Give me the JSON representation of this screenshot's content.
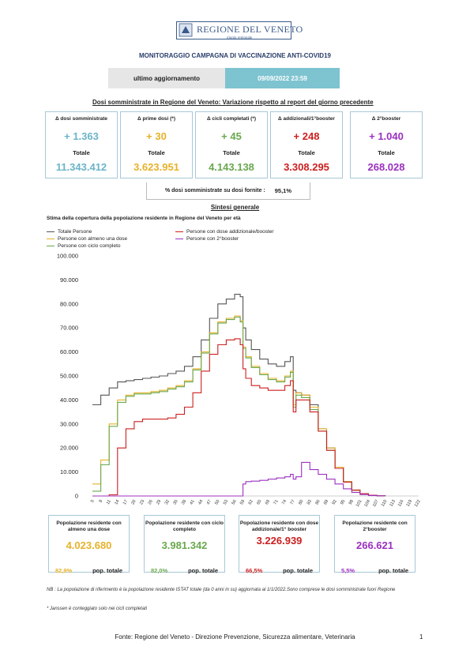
{
  "header": {
    "logo_text": "REGIONE DEL VENETO",
    "logo_subtext": "giunta regionale",
    "title": "MONITORAGGIO CAMPAGNA DI VACCINAZIONE ANTI-COVID19",
    "update_label": "ultimo aggiornamento",
    "update_date": "09/09/2022 23:59"
  },
  "section_title": "Dosi somministrate in Regione del Veneto: Variazione rispetto al report del giorno precedente",
  "cards": [
    {
      "header": "Δ dosi somministrate",
      "delta": "+ 1.363",
      "total_label": "Totale",
      "total": "11.343.412",
      "color": "#6cb4c8"
    },
    {
      "header": "Δ prime dosi (*)",
      "delta": "+ 30",
      "total_label": "Totale",
      "total": "3.623.951",
      "color": "#e6b22a"
    },
    {
      "header": "Δ cicli completati (*)",
      "delta": "+ 45",
      "total_label": "Totale",
      "total": "4.143.138",
      "color": "#6aa84f"
    },
    {
      "header": "Δ addizionali/1°booster",
      "delta": "+ 248",
      "total_label": "Totale",
      "total": "3.308.295",
      "color": "#cc1f1f"
    },
    {
      "header": "Δ 2°booster",
      "delta": "+ 1.040",
      "total_label": "Totale",
      "total": "268.028",
      "color": "#9b30c0"
    }
  ],
  "pct_label": "% dosi somministrate su dosi fornite :",
  "pct_value": "95,1%",
  "sintesi_title": "Sintesi generale",
  "chart_title": "Stima della copertura della popolazione residente in Regione del Veneto per età",
  "bottom_cards": [
    {
      "header": "Popolazione residente con almeno una dose",
      "value": "4.023.680",
      "pct": "82,9%",
      "pop_label": "pop. totale",
      "color": "#e6b22a"
    },
    {
      "header": "Popolazione residente con ciclo completo",
      "value": "3.981.342",
      "pct": "82,0%",
      "pop_label": "pop. totale",
      "color": "#6aa84f"
    },
    {
      "header": "Popolazione residente con dose addizionale/1° booster",
      "value": "3.226.939",
      "pct": "66,5%",
      "pop_label": "pop. totale",
      "color": "#cc1f1f"
    },
    {
      "header": "Popolazione residente con 2°booster",
      "value": "266.621",
      "pct": "5,5%",
      "pop_label": "pop. totale",
      "color": "#9b30c0"
    }
  ],
  "notes": {
    "nb": "NB : La popolazione di riferimento è la popolazione residente ISTAT totale (da 0 anni in su) aggiornata  al 1/1/2022.Sono comprese le dosi somministrate fuori Regione",
    "janssen": "* Janssen è conteggiato solo nei cicli completati"
  },
  "footer": "Fonte: Regione del Veneto - Direzione Prevenzione, Sicurezza alimentare, Veterinaria",
  "page_number": "1",
  "chart_data": {
    "type": "line",
    "y_ticks": [
      "0",
      "10.000",
      "20.000",
      "30.000",
      "40.000",
      "50.000",
      "60.000",
      "70.000",
      "80.000",
      "90.000",
      "100.000"
    ],
    "ylim": [
      0,
      100000
    ],
    "x_ticks": [
      "5",
      "8",
      "11",
      "14",
      "17",
      "20",
      "23",
      "26",
      "29",
      "32",
      "35",
      "38",
      "41",
      "44",
      "47",
      "50",
      "53",
      "56",
      "59",
      "62",
      "65",
      "68",
      "71",
      "74",
      "77",
      "80",
      "83",
      "86",
      "89",
      "92",
      "95",
      "98",
      "101",
      "104",
      "107",
      "110",
      "113",
      "116",
      "119",
      "122"
    ],
    "xlim": [
      5,
      122
    ],
    "legend": [
      {
        "name": "Totale Persone",
        "color": "#555555"
      },
      {
        "name": "Persone con dose addizionale/booster",
        "color": "#cc1f1f"
      },
      {
        "name": "Persone con almeno una dose",
        "color": "#e6b22a"
      },
      {
        "name": "Persone con 2°booster",
        "color": "#9b30c0"
      },
      {
        "name": "Persone con ciclo completo",
        "color": "#6aa84f"
      }
    ],
    "series": [
      {
        "name": "Totale Persone",
        "color": "#555555",
        "x": [
          5,
          8,
          11,
          14,
          17,
          20,
          23,
          26,
          29,
          32,
          35,
          38,
          41,
          44,
          47,
          50,
          53,
          56,
          58,
          59,
          60,
          62,
          65,
          68,
          71,
          74,
          76,
          77,
          78,
          80,
          83,
          86,
          89,
          92,
          95,
          98,
          101,
          104,
          107,
          110
        ],
        "y": [
          38000,
          42000,
          45000,
          47500,
          48000,
          48500,
          49000,
          49500,
          50000,
          51000,
          52000,
          54000,
          58000,
          65000,
          74000,
          80000,
          82000,
          84000,
          83000,
          70000,
          65000,
          61000,
          57000,
          55000,
          54000,
          56000,
          58000,
          44000,
          43000,
          42000,
          38000,
          28000,
          20000,
          12000,
          6000,
          2500,
          1000,
          300,
          80,
          10
        ]
      },
      {
        "name": "Persone con almeno una dose",
        "color": "#e6b22a",
        "x": [
          5,
          8,
          11,
          14,
          17,
          20,
          23,
          26,
          29,
          32,
          35,
          38,
          41,
          44,
          47,
          50,
          53,
          56,
          58,
          59,
          60,
          62,
          65,
          68,
          71,
          74,
          76,
          77,
          78,
          80,
          83,
          86,
          89,
          92,
          95,
          98,
          101,
          104,
          107,
          110
        ],
        "y": [
          5000,
          15000,
          30000,
          40000,
          42000,
          43000,
          43000,
          43500,
          44000,
          45000,
          46000,
          48000,
          53000,
          60000,
          68000,
          72500,
          74000,
          75000,
          73000,
          62000,
          58000,
          54000,
          51000,
          49000,
          48000,
          50000,
          52000,
          38000,
          43000,
          42000,
          37000,
          28000,
          20000,
          12000,
          6000,
          2500,
          1000,
          300,
          80,
          10
        ]
      },
      {
        "name": "Persone con ciclo completo",
        "color": "#6aa84f",
        "x": [
          5,
          8,
          11,
          14,
          17,
          20,
          23,
          26,
          29,
          32,
          35,
          38,
          41,
          44,
          47,
          50,
          53,
          56,
          58,
          59,
          60,
          62,
          65,
          68,
          71,
          74,
          76,
          77,
          78,
          80,
          83,
          86,
          89,
          92,
          95,
          98,
          101,
          104,
          107,
          110
        ],
        "y": [
          2000,
          13000,
          29000,
          39000,
          41500,
          42500,
          42500,
          43000,
          43500,
          44500,
          45500,
          47500,
          52500,
          59500,
          67500,
          72000,
          73500,
          74500,
          72500,
          61500,
          57500,
          53500,
          50500,
          48500,
          47500,
          49500,
          51500,
          37000,
          42000,
          41000,
          36000,
          27000,
          19000,
          11500,
          5800,
          2400,
          950,
          280,
          70,
          10
        ]
      },
      {
        "name": "Persone con dose addizionale/booster",
        "color": "#cc1f1f",
        "x": [
          5,
          8,
          11,
          14,
          17,
          20,
          23,
          26,
          29,
          32,
          35,
          38,
          41,
          44,
          47,
          50,
          53,
          56,
          58,
          59,
          60,
          62,
          65,
          68,
          71,
          74,
          76,
          77,
          78,
          80,
          83,
          86,
          89,
          92,
          95,
          98,
          101,
          104,
          107,
          110
        ],
        "y": [
          0,
          0,
          500,
          20000,
          28000,
          31000,
          32000,
          32000,
          32000,
          32500,
          34000,
          37000,
          43000,
          52000,
          59000,
          63000,
          65000,
          65500,
          63000,
          53000,
          49000,
          46000,
          45000,
          44000,
          44000,
          46000,
          48000,
          35000,
          40000,
          40000,
          35000,
          27000,
          19000,
          11500,
          5800,
          2400,
          950,
          280,
          70,
          10
        ]
      },
      {
        "name": "Persone con 2°booster",
        "color": "#9b30c0",
        "x": [
          5,
          44,
          53,
          58,
          59,
          60,
          62,
          65,
          68,
          71,
          74,
          76,
          77,
          78,
          80,
          83,
          86,
          89,
          92,
          95,
          98,
          101,
          104,
          107,
          110
        ],
        "y": [
          0,
          0,
          0,
          0,
          5000,
          6000,
          6200,
          6500,
          7000,
          7500,
          8000,
          9000,
          7000,
          8000,
          14000,
          11000,
          9000,
          7000,
          5000,
          3000,
          1500,
          600,
          200,
          50,
          5
        ]
      }
    ]
  }
}
